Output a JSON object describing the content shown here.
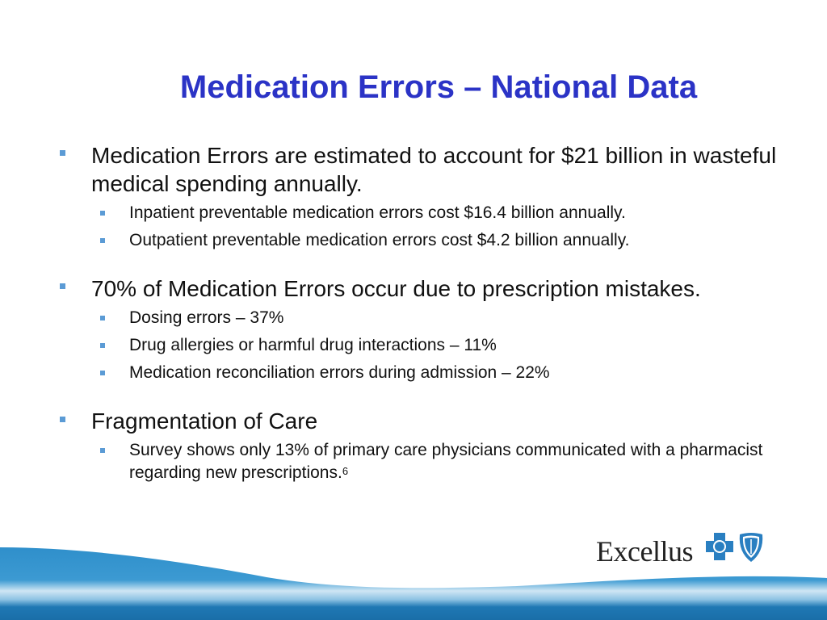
{
  "title": "Medication Errors – National Data",
  "bullets": [
    {
      "text": "Medication Errors are estimated to account for $21 billion in wasteful medical spending annually.",
      "sub": [
        "Inpatient preventable medication errors cost $16.4 billion annually.",
        "Outpatient preventable medication errors cost $4.2 billion annually."
      ]
    },
    {
      "text": "70% of Medication Errors occur due to prescription mistakes.",
      "sub": [
        "Dosing errors – 37%",
        "Drug allergies or harmful drug interactions – 11%",
        "Medication reconciliation errors during admission – 22%"
      ]
    },
    {
      "text": "Fragmentation of Care",
      "sub": [
        "Survey shows only 13% of primary care physicians communicated with a pharmacist regarding new prescriptions."
      ],
      "sub_footnote": "6"
    }
  ],
  "logo": {
    "text": "Excellus",
    "icons": [
      "blue-cross-icon",
      "blue-shield-icon"
    ]
  },
  "colors": {
    "title": "#2b33c6",
    "bullet": "#5b9bd5",
    "wave": "#2a86c0"
  }
}
